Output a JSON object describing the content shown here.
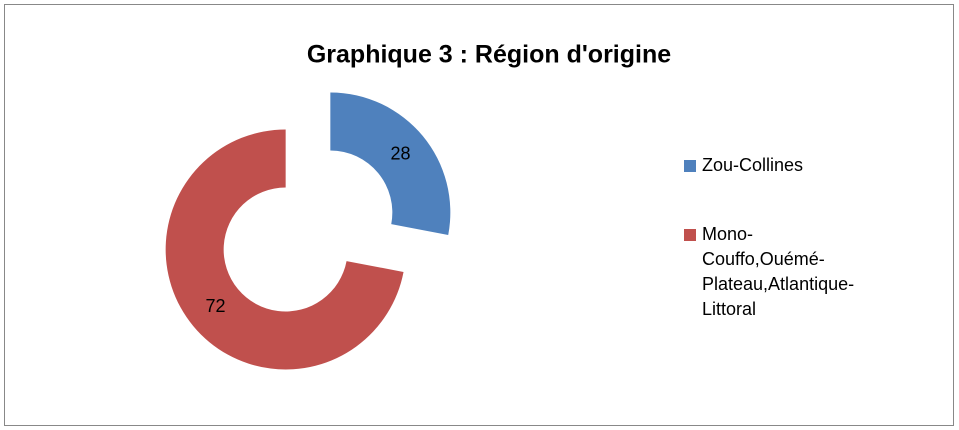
{
  "chart_data": {
    "type": "pie",
    "title": "Graphique 3 : Région d'origine",
    "categories": [
      "Zou-Collines",
      "Mono-Couffo,Ouémé-Plateau,Atlantique-Littoral"
    ],
    "values": [
      28,
      72
    ],
    "colors": [
      "#4f81bd",
      "#c0504d"
    ],
    "donut": true,
    "exploded": true,
    "legend": "right"
  }
}
